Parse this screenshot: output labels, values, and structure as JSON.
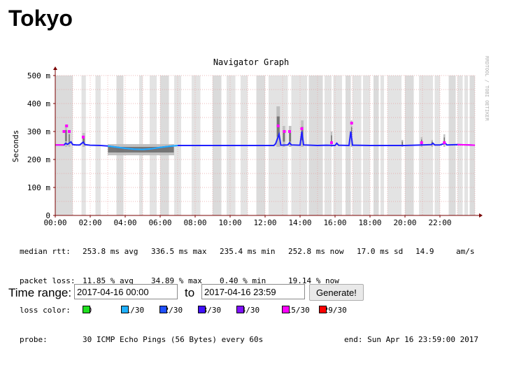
{
  "page": {
    "title": "Tokyo"
  },
  "chart_data": {
    "type": "line",
    "title": "Navigator Graph",
    "ylabel": "Seconds",
    "watermark": "RRDTOOL / TOBI OETIKER",
    "ylim": [
      0,
      0.5
    ],
    "y_ticks": [
      {
        "value": 0,
        "label": "0"
      },
      {
        "value": 0.1,
        "label": "100 m"
      },
      {
        "value": 0.2,
        "label": "200 m"
      },
      {
        "value": 0.3,
        "label": "300 m"
      },
      {
        "value": 0.4,
        "label": "400 m"
      },
      {
        "value": 0.5,
        "label": "500 m"
      }
    ],
    "xlim": [
      0,
      24
    ],
    "x_ticks": [
      {
        "value": 0,
        "label": "00:00"
      },
      {
        "value": 2,
        "label": "02:00"
      },
      {
        "value": 4,
        "label": "04:00"
      },
      {
        "value": 6,
        "label": "06:00"
      },
      {
        "value": 8,
        "label": "08:00"
      },
      {
        "value": 10,
        "label": "10:00"
      },
      {
        "value": 12,
        "label": "12:00"
      },
      {
        "value": 14,
        "label": "14:00"
      },
      {
        "value": 16,
        "label": "16:00"
      },
      {
        "value": 18,
        "label": "18:00"
      },
      {
        "value": 20,
        "label": "20:00"
      },
      {
        "value": 22,
        "label": "22:00"
      }
    ],
    "grid": true,
    "median_rtt_series": [
      [
        0.0,
        0.252
      ],
      [
        0.5,
        0.252
      ],
      [
        0.6,
        0.258
      ],
      [
        0.7,
        0.254
      ],
      [
        0.9,
        0.263
      ],
      [
        1.0,
        0.253
      ],
      [
        1.2,
        0.252
      ],
      [
        1.4,
        0.252
      ],
      [
        1.6,
        0.262
      ],
      [
        1.7,
        0.253
      ],
      [
        2.0,
        0.251
      ],
      [
        2.6,
        0.25
      ],
      [
        3.0,
        0.248
      ],
      [
        3.5,
        0.244
      ],
      [
        4.0,
        0.24
      ],
      [
        4.5,
        0.237
      ],
      [
        5.0,
        0.236
      ],
      [
        5.5,
        0.238
      ],
      [
        6.0,
        0.243
      ],
      [
        6.5,
        0.247
      ],
      [
        7.0,
        0.25
      ],
      [
        8.0,
        0.25
      ],
      [
        9.0,
        0.25
      ],
      [
        10.0,
        0.25
      ],
      [
        11.0,
        0.25
      ],
      [
        12.0,
        0.25
      ],
      [
        12.5,
        0.25
      ],
      [
        12.6,
        0.256
      ],
      [
        12.8,
        0.29
      ],
      [
        12.9,
        0.251
      ],
      [
        13.3,
        0.252
      ],
      [
        13.4,
        0.26
      ],
      [
        13.5,
        0.252
      ],
      [
        14.0,
        0.251
      ],
      [
        14.1,
        0.3
      ],
      [
        14.2,
        0.252
      ],
      [
        15.0,
        0.25
      ],
      [
        15.5,
        0.251
      ],
      [
        16.0,
        0.25
      ],
      [
        16.1,
        0.258
      ],
      [
        16.2,
        0.251
      ],
      [
        16.8,
        0.25
      ],
      [
        16.9,
        0.3
      ],
      [
        17.0,
        0.251
      ],
      [
        18.0,
        0.25
      ],
      [
        19.0,
        0.25
      ],
      [
        20.0,
        0.25
      ],
      [
        20.5,
        0.251
      ],
      [
        21.0,
        0.252
      ],
      [
        21.5,
        0.253
      ],
      [
        21.6,
        0.258
      ],
      [
        21.7,
        0.252
      ],
      [
        22.0,
        0.252
      ],
      [
        22.3,
        0.258
      ],
      [
        22.4,
        0.252
      ],
      [
        23.0,
        0.253
      ],
      [
        23.7,
        0.252
      ],
      [
        24.0,
        0.251
      ]
    ],
    "smoke_bands": [
      [
        0.55,
        0.68,
        0.245,
        0.325
      ],
      [
        0.75,
        0.85,
        0.245,
        0.305
      ],
      [
        1.55,
        1.7,
        0.245,
        0.295
      ],
      [
        3.0,
        6.8,
        0.215,
        0.255
      ],
      [
        12.65,
        12.85,
        0.245,
        0.39
      ],
      [
        13.0,
        13.15,
        0.245,
        0.32
      ],
      [
        13.35,
        13.5,
        0.245,
        0.32
      ],
      [
        14.05,
        14.2,
        0.245,
        0.34
      ],
      [
        15.75,
        15.85,
        0.245,
        0.3
      ],
      [
        16.9,
        16.98,
        0.245,
        0.34
      ],
      [
        19.8,
        19.9,
        0.245,
        0.27
      ],
      [
        20.9,
        21.0,
        0.245,
        0.28
      ],
      [
        21.5,
        21.6,
        0.245,
        0.27
      ],
      [
        22.2,
        22.3,
        0.245,
        0.29
      ]
    ],
    "loss_periods": [
      [
        0.0,
        1.0
      ],
      [
        1.5,
        1.75
      ],
      [
        2.3,
        2.6
      ],
      [
        3.5,
        3.9
      ],
      [
        4.8,
        5.0
      ],
      [
        5.4,
        5.8
      ],
      [
        6.0,
        6.5
      ],
      [
        6.8,
        7.2
      ],
      [
        7.8,
        8.3
      ],
      [
        9.0,
        9.5
      ],
      [
        9.8,
        10.3
      ],
      [
        10.6,
        11.0
      ],
      [
        11.5,
        12.0
      ],
      [
        12.2,
        13.3
      ],
      [
        13.5,
        14.4
      ],
      [
        14.5,
        15.3
      ],
      [
        15.4,
        15.8
      ],
      [
        15.9,
        16.4
      ],
      [
        16.6,
        16.9
      ],
      [
        17.0,
        17.5
      ],
      [
        17.6,
        18.0
      ],
      [
        18.2,
        18.5
      ],
      [
        18.6,
        18.8
      ],
      [
        19.0,
        19.8
      ],
      [
        20.0,
        20.5
      ],
      [
        20.8,
        21.6
      ],
      [
        21.7,
        22.0
      ],
      [
        22.5,
        22.9
      ],
      [
        23.0,
        23.3
      ],
      [
        23.4,
        23.6
      ],
      [
        23.7,
        24.0
      ]
    ],
    "loss_peaks": [
      [
        0.5,
        0.3
      ],
      [
        0.65,
        0.32
      ],
      [
        0.8,
        0.3
      ],
      [
        1.6,
        0.28
      ],
      [
        12.75,
        0.32
      ],
      [
        13.1,
        0.3
      ],
      [
        13.4,
        0.3
      ],
      [
        14.1,
        0.31
      ],
      [
        15.8,
        0.26
      ],
      [
        16.95,
        0.33
      ],
      [
        20.95,
        0.26
      ],
      [
        22.25,
        0.26
      ]
    ],
    "colors": {
      "median_normal": "#2020ff",
      "median_dip": "#20b0ff",
      "median_loss": "#ff00ff",
      "smoke_dark": "#444444",
      "smoke_light": "#bbbbbb",
      "loss_bg": "#d9d9d9",
      "axis": "#7a0000",
      "grid": "#e6a0a0"
    }
  },
  "stats": {
    "median_rtt": {
      "label": "median rtt:",
      "avg": "253.8 ms avg",
      "max": "336.5 ms max",
      "min": "235.4 ms min",
      "now": "252.8 ms now",
      "sd": "17.0 ms sd",
      "am": "14.9",
      "am_unit": "am/s"
    },
    "packet_loss": {
      "label": "packet loss:",
      "avg": "11.85 % avg",
      "max": "34.89 % max",
      "min": "0.40 % min",
      "now": "19.14 % now"
    },
    "loss_color": {
      "label": "loss color:",
      "items": [
        {
          "label": "0",
          "color": "#20e020"
        },
        {
          "label": "1/30",
          "color": "#20b0ff"
        },
        {
          "label": "2/30",
          "color": "#2050ff"
        },
        {
          "label": "3/30",
          "color": "#4010ff"
        },
        {
          "label": "4/30",
          "color": "#8010ff"
        },
        {
          "label": "15/30",
          "color": "#ff00ff"
        },
        {
          "label": "29/30",
          "color": "#ff0000"
        }
      ]
    },
    "probe": {
      "label": "probe:",
      "value": "30 ICMP Echo Pings (56 Bytes) every 60s",
      "end": "end: Sun Apr 16 23:59:00 2017"
    }
  },
  "timerange": {
    "label": "Time range:",
    "from": "2017-04-16 00:00",
    "to_label": "to",
    "to": "2017-04-16 23:59",
    "button": "Generate!"
  }
}
